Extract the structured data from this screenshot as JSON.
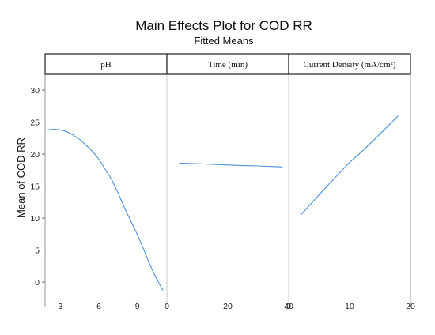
{
  "chart_data": {
    "type": "line",
    "title": "Main Effects Plot for COD RR",
    "subtitle": "Fitted Means",
    "ylabel": "Mean of COD RR",
    "ylim": [
      -1.6,
      32.6
    ],
    "yticks": [
      0,
      5,
      10,
      15,
      20,
      25,
      30
    ],
    "ytick_labels": [
      "0",
      "5",
      "10",
      "15",
      "20",
      "25",
      "30"
    ],
    "series_color": "#4a90d9",
    "panels": [
      {
        "name": "pH",
        "xlim": [
          1.8,
          11.3
        ],
        "xticks": [
          3,
          6,
          9
        ],
        "xtick_labels": [
          "3",
          "6",
          "9"
        ],
        "x": [
          2,
          2.5,
          3,
          3.5,
          4,
          4.5,
          5,
          5.5,
          6,
          6.5,
          7,
          7.5,
          8,
          8.5,
          9,
          9.5,
          10,
          10.5,
          11
        ],
        "y": [
          23.8,
          23.9,
          23.8,
          23.5,
          23.0,
          22.3,
          21.4,
          20.4,
          19.2,
          17.6,
          16.0,
          13.9,
          11.6,
          9.5,
          7.4,
          5.1,
          2.6,
          0.5,
          -1.3
        ]
      },
      {
        "name": "Time (min)",
        "xlim": [
          0,
          40
        ],
        "xticks": [
          0,
          20,
          40
        ],
        "xtick_labels": [
          "0",
          "20",
          "40"
        ],
        "x": [
          4,
          10,
          15,
          20,
          25,
          30,
          35,
          38
        ],
        "y": [
          18.6,
          18.5,
          18.4,
          18.3,
          18.2,
          18.15,
          18.05,
          18.0
        ]
      },
      {
        "name": "Current Density (mA/cm²)",
        "xlim": [
          0,
          20
        ],
        "xticks": [
          0,
          10,
          20
        ],
        "xtick_labels": [
          "0",
          "10",
          "20"
        ],
        "x": [
          2,
          4,
          6,
          8,
          10,
          12,
          14,
          16,
          18
        ],
        "y": [
          10.5,
          12.6,
          14.7,
          16.7,
          18.7,
          20.4,
          22.2,
          24.1,
          26.0
        ]
      }
    ]
  }
}
